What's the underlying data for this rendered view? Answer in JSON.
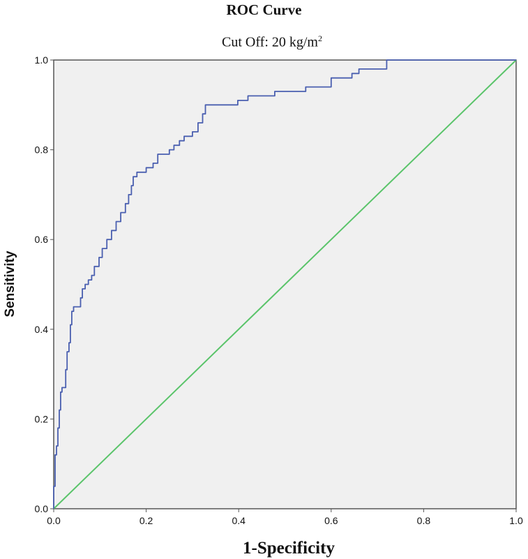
{
  "chart_data": {
    "type": "line",
    "title": "ROC Curve",
    "subtitle": {
      "text": "Cut Off: 20 kg/m",
      "superscript": "2"
    },
    "xlabel": "1-Specificity",
    "ylabel": "Sensitivity",
    "xlim": [
      0,
      1
    ],
    "ylim": [
      0,
      1
    ],
    "xticks": [
      "0.0",
      "0.2",
      "0.4",
      "0.6",
      "0.8",
      "1.0"
    ],
    "yticks": [
      "0.0",
      "0.2",
      "0.4",
      "0.6",
      "0.8",
      "1.0"
    ],
    "grid": false,
    "plot_background": "#f0f0f0",
    "series": [
      {
        "color": "#4a5fb0",
        "step": true,
        "points": [
          [
            0.0,
            0.0
          ],
          [
            0.0,
            0.05
          ],
          [
            0.003,
            0.05
          ],
          [
            0.003,
            0.12
          ],
          [
            0.006,
            0.12
          ],
          [
            0.006,
            0.14
          ],
          [
            0.009,
            0.14
          ],
          [
            0.009,
            0.18
          ],
          [
            0.012,
            0.18
          ],
          [
            0.012,
            0.22
          ],
          [
            0.015,
            0.22
          ],
          [
            0.015,
            0.26
          ],
          [
            0.018,
            0.26
          ],
          [
            0.018,
            0.27
          ],
          [
            0.026,
            0.27
          ],
          [
            0.026,
            0.31
          ],
          [
            0.029,
            0.31
          ],
          [
            0.029,
            0.35
          ],
          [
            0.033,
            0.35
          ],
          [
            0.033,
            0.37
          ],
          [
            0.036,
            0.37
          ],
          [
            0.036,
            0.41
          ],
          [
            0.039,
            0.41
          ],
          [
            0.039,
            0.44
          ],
          [
            0.043,
            0.44
          ],
          [
            0.043,
            0.45
          ],
          [
            0.058,
            0.45
          ],
          [
            0.058,
            0.47
          ],
          [
            0.062,
            0.47
          ],
          [
            0.062,
            0.49
          ],
          [
            0.068,
            0.49
          ],
          [
            0.068,
            0.5
          ],
          [
            0.075,
            0.5
          ],
          [
            0.075,
            0.51
          ],
          [
            0.082,
            0.51
          ],
          [
            0.082,
            0.52
          ],
          [
            0.088,
            0.52
          ],
          [
            0.088,
            0.54
          ],
          [
            0.098,
            0.54
          ],
          [
            0.098,
            0.56
          ],
          [
            0.105,
            0.56
          ],
          [
            0.105,
            0.58
          ],
          [
            0.115,
            0.58
          ],
          [
            0.115,
            0.6
          ],
          [
            0.125,
            0.6
          ],
          [
            0.125,
            0.62
          ],
          [
            0.135,
            0.62
          ],
          [
            0.135,
            0.64
          ],
          [
            0.145,
            0.64
          ],
          [
            0.145,
            0.66
          ],
          [
            0.155,
            0.66
          ],
          [
            0.155,
            0.68
          ],
          [
            0.162,
            0.68
          ],
          [
            0.162,
            0.7
          ],
          [
            0.168,
            0.7
          ],
          [
            0.168,
            0.72
          ],
          [
            0.172,
            0.72
          ],
          [
            0.172,
            0.74
          ],
          [
            0.18,
            0.74
          ],
          [
            0.18,
            0.75
          ],
          [
            0.2,
            0.75
          ],
          [
            0.2,
            0.76
          ],
          [
            0.215,
            0.76
          ],
          [
            0.215,
            0.77
          ],
          [
            0.225,
            0.77
          ],
          [
            0.225,
            0.79
          ],
          [
            0.25,
            0.79
          ],
          [
            0.25,
            0.8
          ],
          [
            0.26,
            0.8
          ],
          [
            0.26,
            0.81
          ],
          [
            0.272,
            0.81
          ],
          [
            0.272,
            0.82
          ],
          [
            0.282,
            0.82
          ],
          [
            0.282,
            0.83
          ],
          [
            0.3,
            0.83
          ],
          [
            0.3,
            0.84
          ],
          [
            0.312,
            0.84
          ],
          [
            0.312,
            0.86
          ],
          [
            0.322,
            0.86
          ],
          [
            0.322,
            0.88
          ],
          [
            0.328,
            0.88
          ],
          [
            0.328,
            0.9
          ],
          [
            0.398,
            0.9
          ],
          [
            0.398,
            0.91
          ],
          [
            0.42,
            0.91
          ],
          [
            0.42,
            0.92
          ],
          [
            0.478,
            0.92
          ],
          [
            0.478,
            0.93
          ],
          [
            0.545,
            0.93
          ],
          [
            0.545,
            0.94
          ],
          [
            0.6,
            0.94
          ],
          [
            0.6,
            0.96
          ],
          [
            0.645,
            0.96
          ],
          [
            0.645,
            0.97
          ],
          [
            0.66,
            0.97
          ],
          [
            0.66,
            0.98
          ],
          [
            0.72,
            0.98
          ],
          [
            0.72,
            1.0
          ],
          [
            1.0,
            1.0
          ]
        ]
      },
      {
        "color": "#5ac46a",
        "points": [
          [
            0,
            0
          ],
          [
            1,
            1
          ]
        ]
      }
    ]
  }
}
